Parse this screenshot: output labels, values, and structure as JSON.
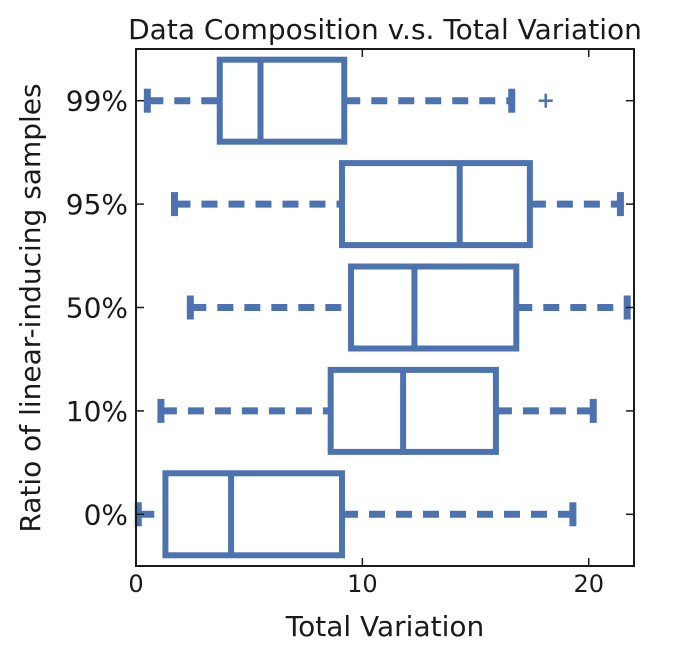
{
  "chart_data": {
    "type": "box",
    "orientation": "horizontal",
    "title": "Data Composition v.s. Total Variation",
    "xlabel": "Total Variation",
    "ylabel": "Ratio of linear-inducing samples",
    "xlim": [
      0,
      22
    ],
    "xticks": [
      0,
      10,
      20
    ],
    "xtick_labels": [
      "0",
      "10",
      "20"
    ],
    "grid": false,
    "categories": [
      "99%",
      "95%",
      "50%",
      "10%",
      "0%"
    ],
    "boxes": [
      {
        "label": "99%",
        "whisker_low": 0.5,
        "q1": 3.7,
        "median": 5.5,
        "q3": 9.2,
        "whisker_high": 16.6,
        "outliers": [
          18.1
        ]
      },
      {
        "label": "95%",
        "whisker_low": 1.7,
        "q1": 9.1,
        "median": 14.3,
        "q3": 17.4,
        "whisker_high": 21.4,
        "outliers": []
      },
      {
        "label": "50%",
        "whisker_low": 2.4,
        "q1": 9.5,
        "median": 12.3,
        "q3": 16.8,
        "whisker_high": 21.7,
        "outliers": []
      },
      {
        "label": "10%",
        "whisker_low": 1.1,
        "q1": 8.6,
        "median": 11.8,
        "q3": 15.9,
        "whisker_high": 20.2,
        "outliers": []
      },
      {
        "label": "0%",
        "whisker_low": 0.1,
        "q1": 1.3,
        "median": 4.2,
        "q3": 9.1,
        "whisker_high": 19.3,
        "outliers": []
      }
    ],
    "colors": {
      "box": "#4c72b0",
      "axis": "#1a1a1a"
    }
  }
}
